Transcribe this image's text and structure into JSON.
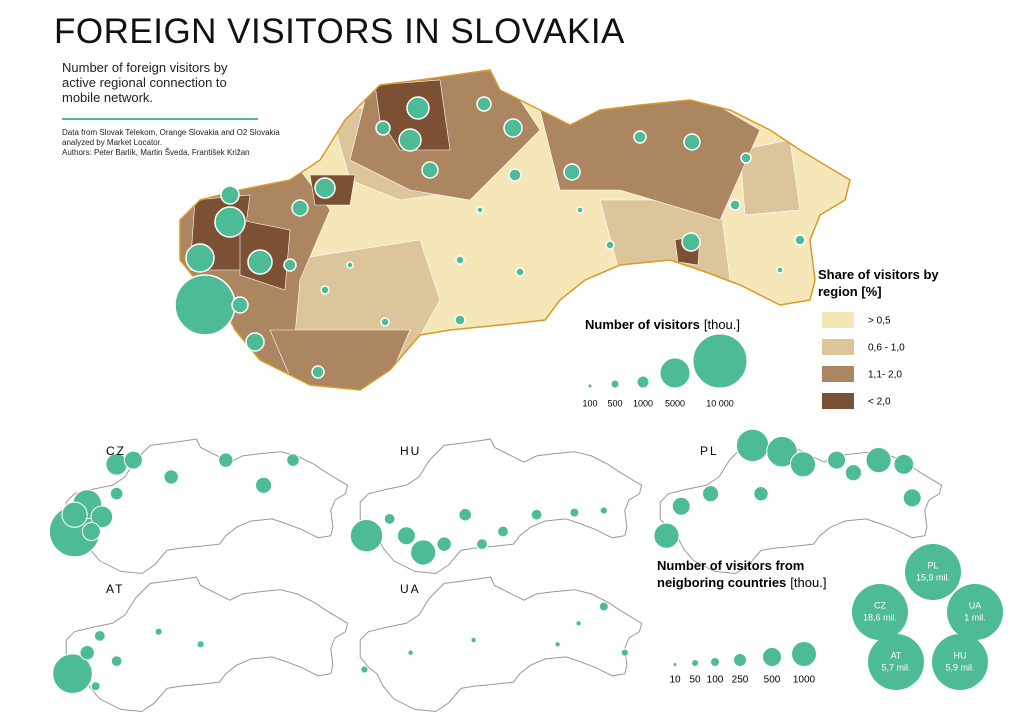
{
  "header": {
    "title": "FOREIGN VISITORS IN SLOVAKIA",
    "subtitle": "Number of foreign visitors by active regional connection to mobile network.",
    "source": [
      "Data from Slovak Telekom, Orange Slovakia and O2 Slovakia analyzed by Market Locator.",
      "Authors: Peter Barlík, Martin Šveda, František Križan"
    ]
  },
  "main_map": {
    "legend_share": {
      "title": "Share of visitors by region [%]",
      "classes": [
        {
          "label": "> 0,5",
          "color": "#f6e7b9"
        },
        {
          "label": "0,6 - 1,0",
          "color": "#dcc59b"
        },
        {
          "label": "1,1- 2,0",
          "color": "#ac8561"
        },
        {
          "label": "< 2,0",
          "color": "#7c5033"
        }
      ]
    },
    "legend_size": {
      "title": "Number of visitors",
      "unit": "[thou.]",
      "labels": [
        "100",
        "500",
        "1000",
        "5000",
        "10 000"
      ]
    }
  },
  "small_maps": {
    "panels": [
      "CZ",
      "HU",
      "PL",
      "AT",
      "UA"
    ],
    "legend": {
      "title": "Number of visitors from neigboring countries",
      "unit": "[thou.]",
      "labels": [
        "10",
        "50",
        "100",
        "250",
        "500",
        "1000"
      ]
    },
    "totals": [
      {
        "country": "PL",
        "label": "15,9 mil."
      },
      {
        "country": "CZ",
        "label": "18,6 mil."
      },
      {
        "country": "UA",
        "label": "1 mil."
      },
      {
        "country": "AT",
        "label": "5,7 mil."
      },
      {
        "country": "HU",
        "label": "5,9 mil."
      }
    ]
  }
}
